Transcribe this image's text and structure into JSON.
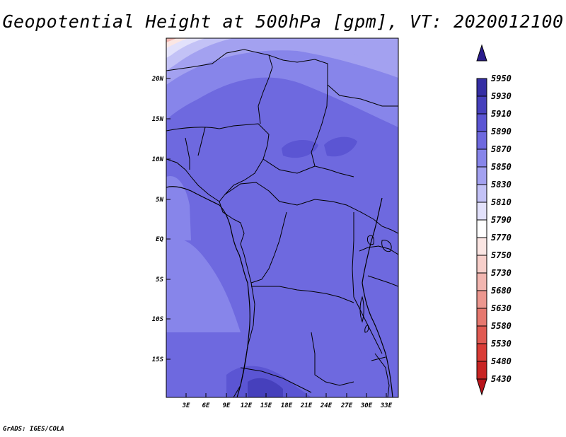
{
  "title": "Geopotential Height at 500hPa [gpm], VT: 2020012100",
  "credit": "GrADS: IGES/COLA",
  "map": {
    "lat_labels": [
      "20N",
      "15N",
      "10N",
      "5N",
      "EQ",
      "5S",
      "10S",
      "15S"
    ],
    "lon_labels": [
      "3E",
      "6E",
      "9E",
      "12E",
      "15E",
      "18E",
      "21E",
      "24E",
      "27E",
      "30E",
      "33E"
    ]
  },
  "colorbar": {
    "levels": [
      "5430",
      "5480",
      "5530",
      "5580",
      "5630",
      "5680",
      "5730",
      "5750",
      "5770",
      "5790",
      "5810",
      "5830",
      "5850",
      "5870",
      "5890",
      "5910",
      "5930",
      "5950"
    ],
    "colors": [
      "#b8141b",
      "#c82423",
      "#d93c36",
      "#e05a52",
      "#e6786f",
      "#ec978f",
      "#f2b6b0",
      "#f7cfca",
      "#fbe6e3",
      "#ffffff",
      "#e2e1fb",
      "#c3c2f6",
      "#a3a1f0",
      "#8785ea",
      "#6e69df",
      "#5b55d3",
      "#4640bc",
      "#352ea4",
      "#2a1c8c"
    ]
  },
  "colors": {
    "field_main": "#6e69df",
    "field_light": "#8785ea",
    "field_lighter": "#a3a1f0",
    "field_dark": "#5b55d3"
  }
}
